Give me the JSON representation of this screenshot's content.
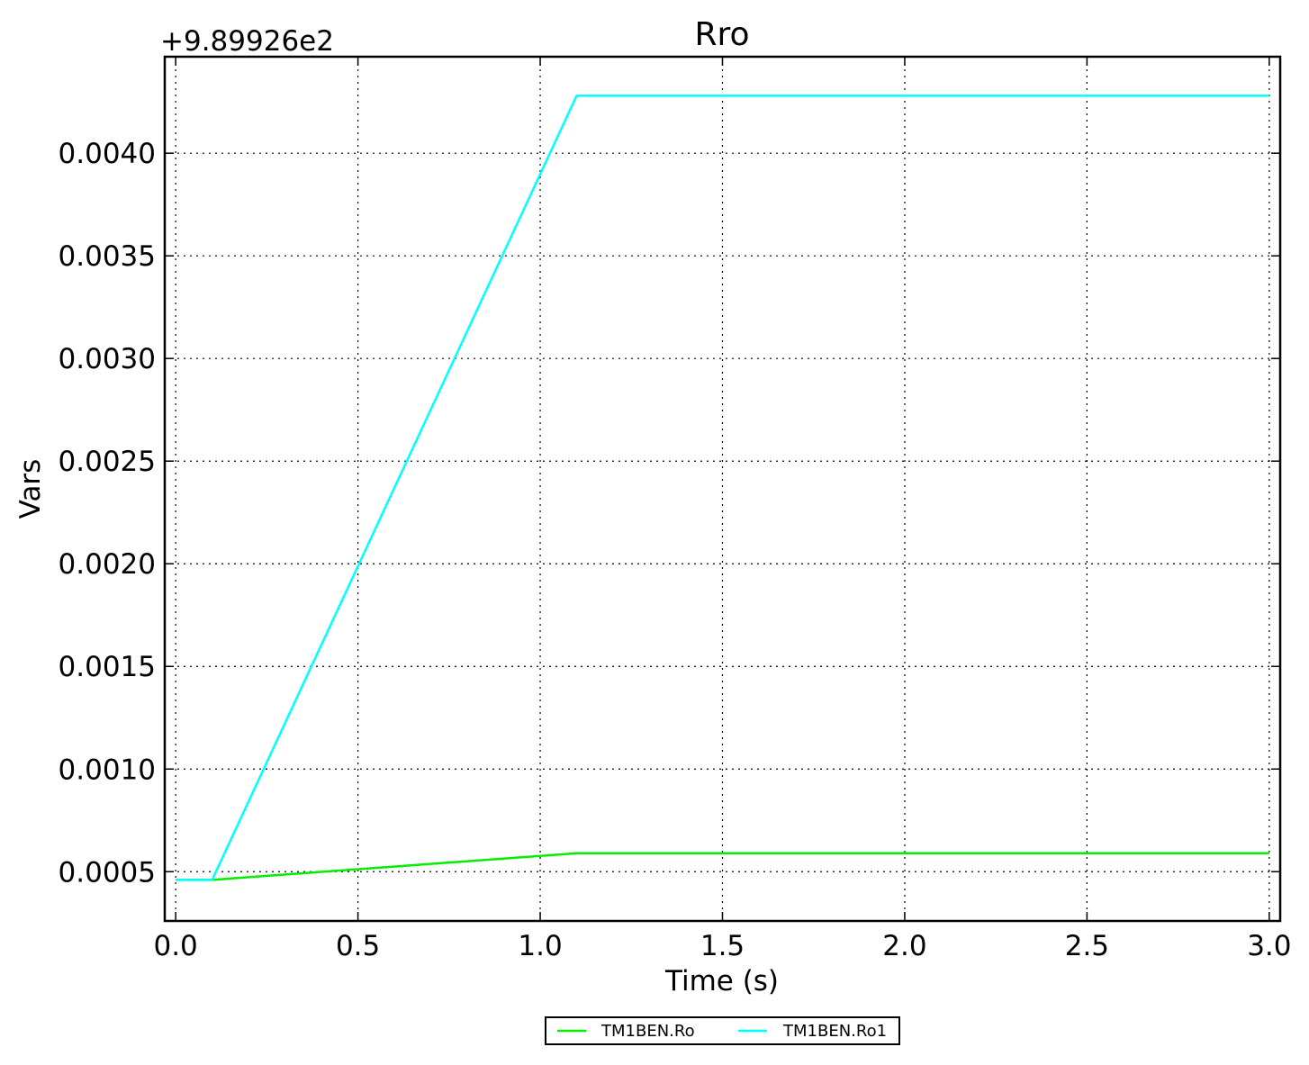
{
  "chart_data": {
    "type": "line",
    "title": "Rro",
    "xlabel": "Time (s)",
    "ylabel": "Vars",
    "y_offset_label": "+9.89926e2",
    "xlim": [
      -0.03,
      3.03
    ],
    "ylim": [
      0.00026,
      0.00447
    ],
    "xticks": [
      0.0,
      0.5,
      1.0,
      1.5,
      2.0,
      2.5,
      3.0
    ],
    "xtick_labels": [
      "0.0",
      "0.5",
      "1.0",
      "1.5",
      "2.0",
      "2.5",
      "3.0"
    ],
    "yticks": [
      0.0005,
      0.001,
      0.0015,
      0.002,
      0.0025,
      0.003,
      0.0035,
      0.004
    ],
    "ytick_labels": [
      "0.0005",
      "0.0010",
      "0.0015",
      "0.0020",
      "0.0025",
      "0.0030",
      "0.0035",
      "0.0040"
    ],
    "grid": true,
    "legend_position": "bottom-center",
    "series": [
      {
        "name": "TM1BEN.Ro",
        "color": "#00ee00",
        "x": [
          0.0,
          0.1,
          1.1,
          3.0
        ],
        "y": [
          0.00046,
          0.00046,
          0.00059,
          0.00059
        ]
      },
      {
        "name": "TM1BEN.Ro1",
        "color": "#00ffff",
        "x": [
          0.0,
          0.1,
          1.1,
          3.0
        ],
        "y": [
          0.00046,
          0.00046,
          0.00428,
          0.00428
        ]
      }
    ]
  }
}
